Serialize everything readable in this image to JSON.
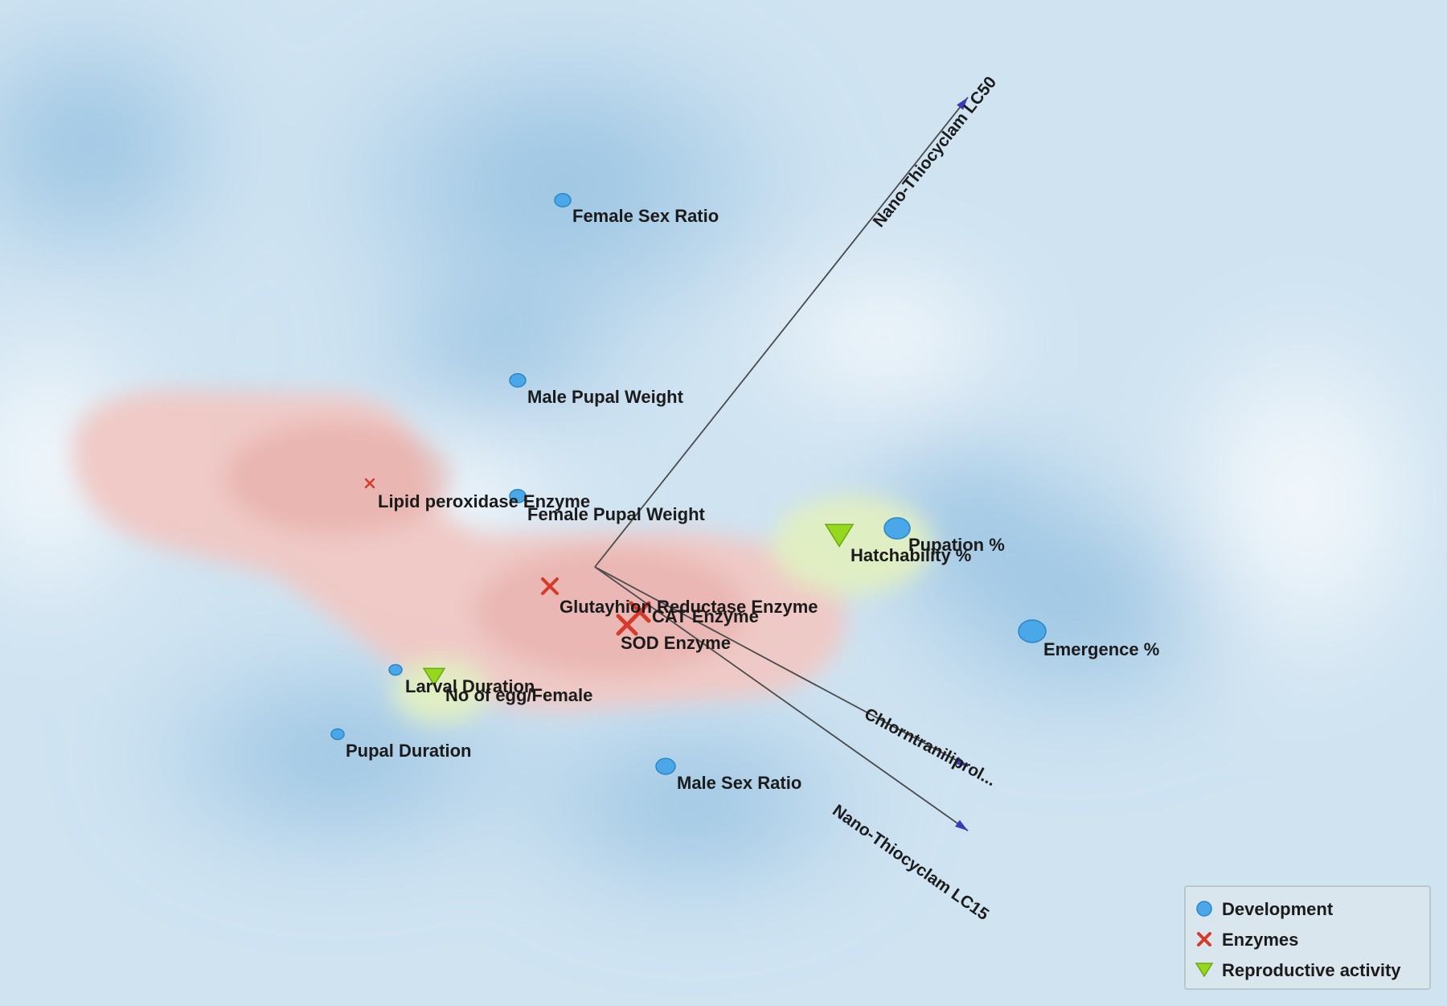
{
  "chart_data": {
    "type": "scatter",
    "title": "",
    "xlabel": "",
    "ylabel": "",
    "colors": {
      "Development": "#4aa8e8",
      "Enzymes": "#d63a2a",
      "Reproductive activity": "#96d81e",
      "axis": "#4a4a4a",
      "arrowhead": "#3a3ab8"
    },
    "legend": {
      "position": "bottom-right",
      "entries": [
        {
          "name": "Development",
          "marker": "circle"
        },
        {
          "name": "Enzymes",
          "marker": "cross"
        },
        {
          "name": "Reproductive activity",
          "marker": "triangle"
        }
      ]
    },
    "biplot_axes": [
      {
        "label": "Nano-Thiocyclam LC50",
        "x": 0.58,
        "y": 0.73
      },
      {
        "label": "Chlorntraniliprol...",
        "x": 0.58,
        "y": -0.31
      },
      {
        "label": "Nano-Thiocyclam LC15",
        "x": 0.58,
        "y": -0.41
      }
    ],
    "series": [
      {
        "name": "Development",
        "marker": "circle",
        "points": [
          {
            "label": "Female Sex Ratio",
            "x": -0.05,
            "y": 0.57
          },
          {
            "label": "Male Pupal Weight",
            "x": -0.12,
            "y": 0.29
          },
          {
            "label": "Female Pupal Weight",
            "x": -0.12,
            "y": 0.11
          },
          {
            "label": "Pupation %",
            "x": 0.47,
            "y": 0.06
          },
          {
            "label": "Emergence %",
            "x": 0.68,
            "y": -0.1
          },
          {
            "label": "Larval Duration",
            "x": -0.31,
            "y": -0.16
          },
          {
            "label": "Pupal Duration",
            "x": -0.4,
            "y": -0.26
          },
          {
            "label": "Male Sex Ratio",
            "x": 0.11,
            "y": -0.31
          }
        ]
      },
      {
        "name": "Enzymes",
        "marker": "cross",
        "points": [
          {
            "label": "Lipid peroxidase Enzyme",
            "x": -0.35,
            "y": 0.13
          },
          {
            "label": "Glutayhion Reductase Enzyme",
            "x": -0.07,
            "y": -0.03
          },
          {
            "label": "CAT Enzyme",
            "x": 0.07,
            "y": -0.07
          },
          {
            "label": "SOD Enzyme",
            "x": 0.05,
            "y": -0.09
          }
        ]
      },
      {
        "name": "Reproductive activity",
        "marker": "triangle",
        "points": [
          {
            "label": "Hatchability %",
            "x": 0.38,
            "y": 0.05
          },
          {
            "label": "No of egg/Female",
            "x": -0.25,
            "y": -0.17
          }
        ]
      }
    ]
  }
}
